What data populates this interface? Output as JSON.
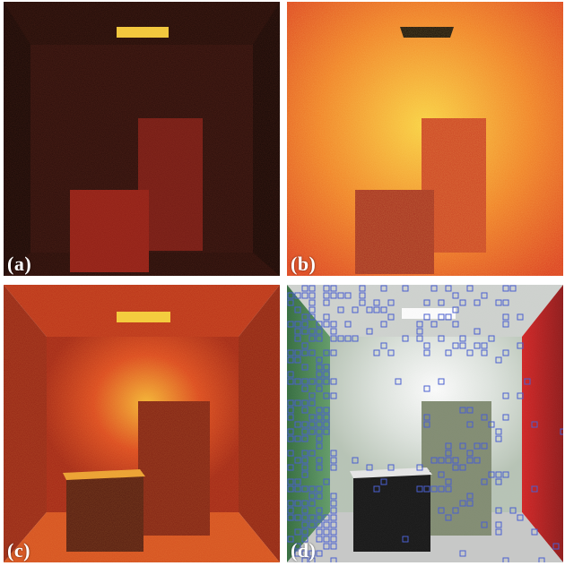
{
  "figure": {
    "panels": [
      {
        "id": "a",
        "label": "(a)"
      },
      {
        "id": "b",
        "label": "(b)"
      },
      {
        "id": "c",
        "label": "(c)"
      },
      {
        "id": "d",
        "label": "(d)"
      }
    ]
  },
  "colors": {
    "background": "#ffffff",
    "label_text": "#ffffff",
    "grid_squares": "#4a5fd0"
  }
}
